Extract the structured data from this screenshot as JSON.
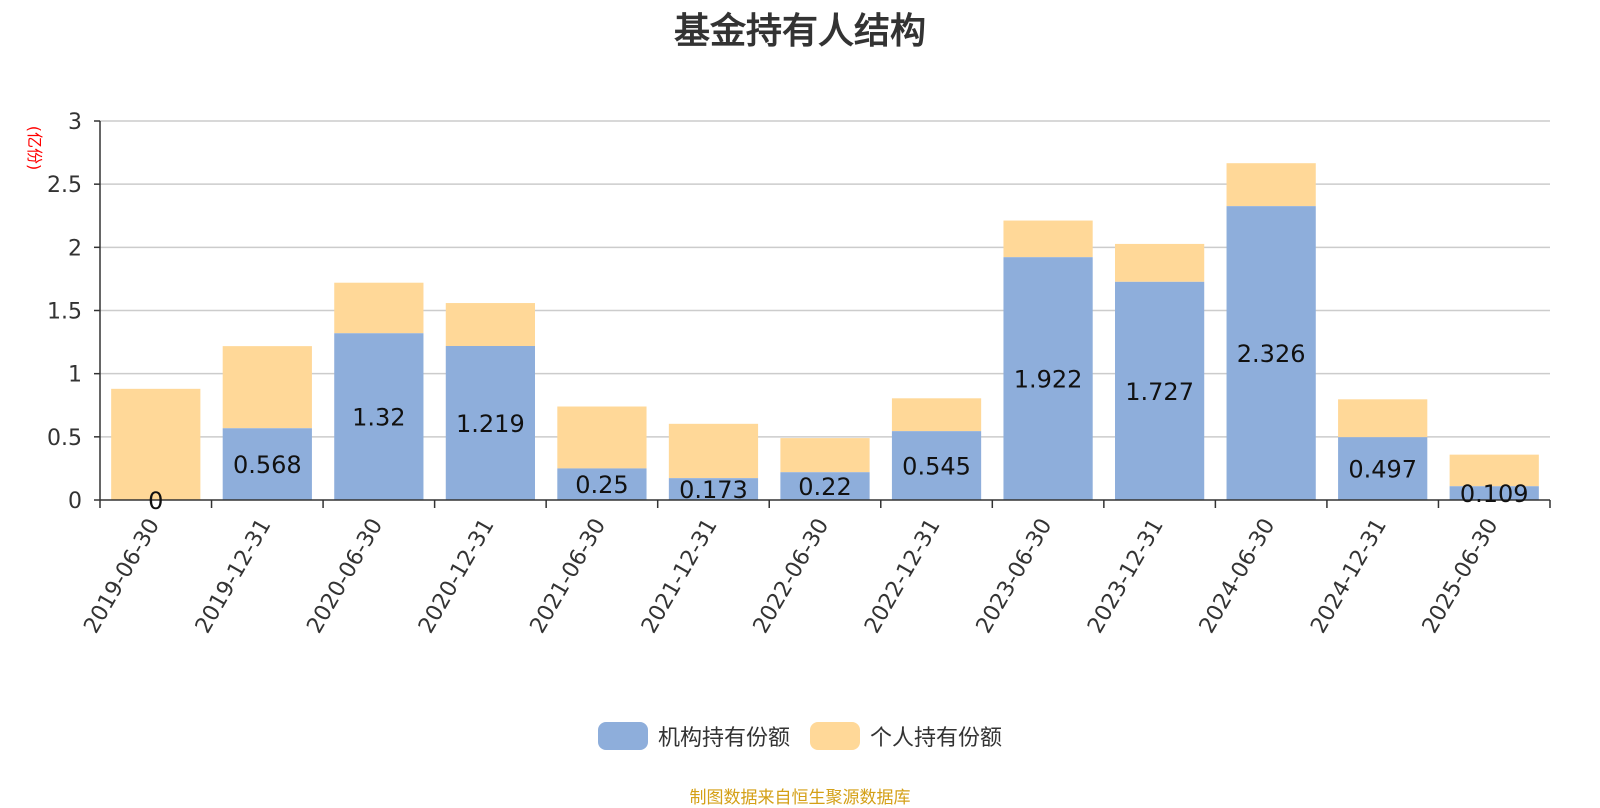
{
  "chart_data": {
    "type": "bar",
    "stacked": true,
    "title": "基金持有人结构",
    "unit_label": "(亿份)",
    "categories": [
      "2019-06-30",
      "2019-12-31",
      "2020-06-30",
      "2020-12-31",
      "2021-06-30",
      "2021-12-31",
      "2022-06-30",
      "2022-12-31",
      "2023-06-30",
      "2023-12-31",
      "2024-06-30",
      "2024-12-31",
      "2025-06-30"
    ],
    "series": [
      {
        "name": "机构持有份额",
        "color": "#8eaedb",
        "values": [
          0,
          0.568,
          1.32,
          1.219,
          0.25,
          0.173,
          0.22,
          0.545,
          1.922,
          1.727,
          2.326,
          0.497,
          0.109
        ],
        "labels": [
          "0",
          "0.568",
          "1.32",
          "1.219",
          "0.25",
          "0.173",
          "0.22",
          "0.545",
          "1.922",
          "1.727",
          "2.326",
          "0.497",
          "0.109"
        ]
      },
      {
        "name": "个人持有份额",
        "color": "#ffd898",
        "values": [
          0.88,
          0.65,
          0.4,
          0.34,
          0.49,
          0.43,
          0.27,
          0.26,
          0.29,
          0.3,
          0.34,
          0.3,
          0.25
        ]
      }
    ],
    "ylim": [
      0,
      3
    ],
    "yticks": [
      "0",
      "0.5",
      "1",
      "1.5",
      "2",
      "2.5",
      "3"
    ],
    "grid": true,
    "legend_position": "bottom"
  },
  "footer": {
    "source": "制图数据来自恒生聚源数据库"
  }
}
